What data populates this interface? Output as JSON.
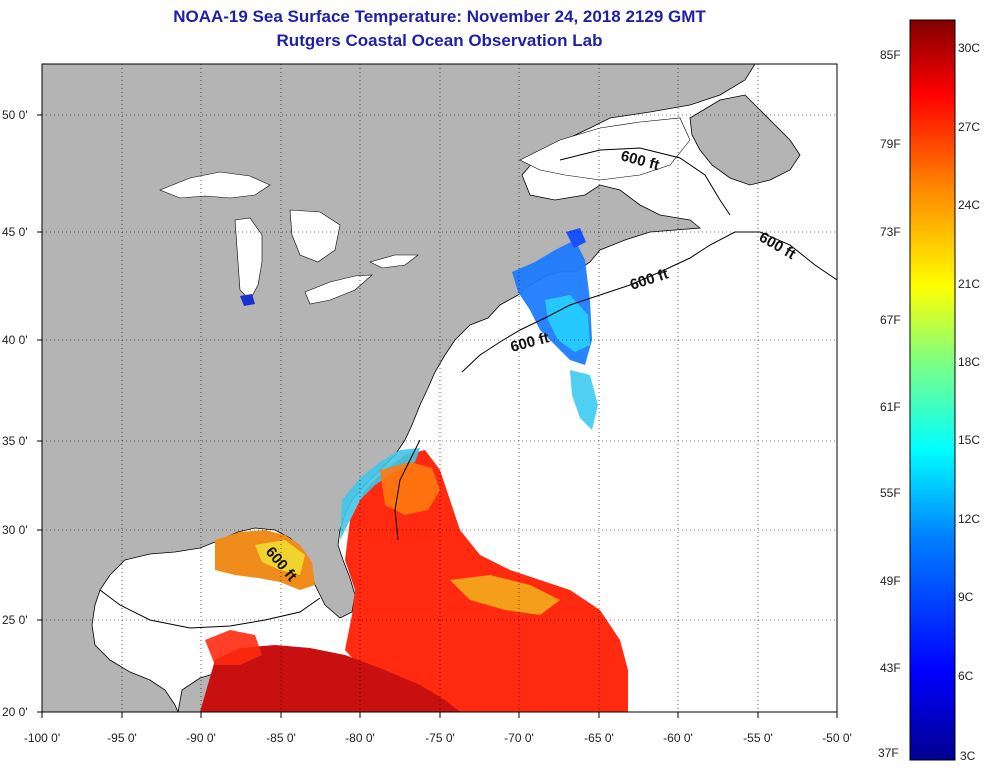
{
  "title": {
    "line1": "NOAA-19 Sea Surface Temperature:  November 24, 2018 2129 GMT",
    "line2": "Rutgers Coastal Ocean Observation Lab"
  },
  "axes": {
    "lon_ticks": [
      "-100 0'",
      "-95 0'",
      "-90 0'",
      "-85 0'",
      "-80 0'",
      "-75 0'",
      "-70 0'",
      "-65 0'",
      "-60 0'",
      "-55 0'",
      "-50 0'"
    ],
    "lat_ticks": [
      "20 0'",
      "25 0'",
      "30 0'",
      "35 0'",
      "40 0'",
      "45 0'",
      "50 0'"
    ]
  },
  "contour_label": "600 ft",
  "colorbar": {
    "f_labels": [
      "85F",
      "79F",
      "73F",
      "67F",
      "61F",
      "55F",
      "49F",
      "43F",
      "37F"
    ],
    "c_labels": [
      "30C",
      "27C",
      "24C",
      "21C",
      "18C",
      "15C",
      "12C",
      "9C",
      "6C",
      "3C"
    ],
    "colors": [
      "#00008f",
      "#0000ff",
      "#0080ff",
      "#00ffff",
      "#80ff80",
      "#ffff00",
      "#ff8000",
      "#ff0000",
      "#800000"
    ]
  },
  "colors": {
    "land": "#b4b4b4",
    "ocean": "#ffffff",
    "title": "#1f1fa8"
  }
}
